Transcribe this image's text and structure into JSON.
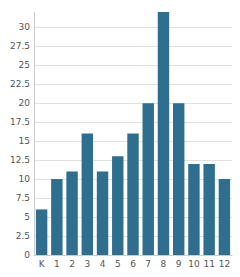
{
  "chart_data": {
    "type": "bar",
    "categories": [
      "K",
      "1",
      "2",
      "3",
      "4",
      "5",
      "6",
      "7",
      "8",
      "9",
      "10",
      "11",
      "12"
    ],
    "values": [
      6,
      10,
      11,
      16,
      11,
      13,
      16,
      20,
      32,
      20,
      12,
      12,
      10
    ],
    "color": "#2e6e8e",
    "ylim": [
      0,
      32
    ],
    "yticks": [
      0,
      2.5,
      5,
      7.5,
      10,
      12.5,
      15,
      17.5,
      20,
      22.5,
      25,
      27.5,
      30
    ],
    "grid": true
  }
}
